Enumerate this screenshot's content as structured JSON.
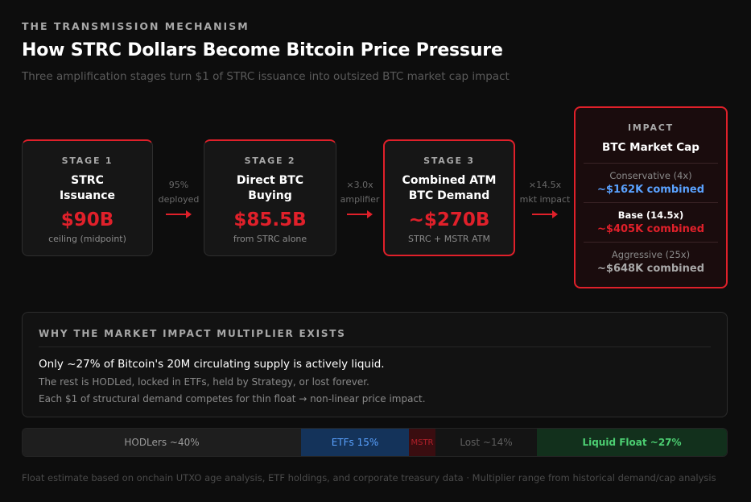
{
  "header": {
    "eyebrow": "THE TRANSMISSION MECHANISM",
    "title": "How STRC Dollars Become Bitcoin Price Pressure",
    "subtitle": "Three amplification stages turn $1 of STRC issuance into outsized BTC market cap impact"
  },
  "stages": [
    {
      "label": "STAGE 1",
      "name_line1": "STRC",
      "name_line2": "Issuance",
      "value": "$90B",
      "note": "ceiling (midpoint)"
    },
    {
      "label": "STAGE 2",
      "name_line1": "Direct BTC",
      "name_line2": "Buying",
      "value": "$85.5B",
      "note": "from STRC alone"
    },
    {
      "label": "STAGE 3",
      "name_line1": "Combined ATM",
      "name_line2": "BTC Demand",
      "value": "~$270B",
      "note": "STRC + MSTR ATM"
    }
  ],
  "connectors": [
    {
      "top": "95%",
      "bottom": "deployed"
    },
    {
      "top": "×3.0x",
      "bottom": "amplifier"
    },
    {
      "top": "×14.5x",
      "bottom": "mkt impact"
    }
  ],
  "impact": {
    "label": "IMPACT",
    "title": "BTC Market Cap",
    "scenarios": [
      {
        "name": "Conservative (4x)",
        "value": "~$162K combined"
      },
      {
        "name": "Base (14.5x)",
        "value": "~$405K combined"
      },
      {
        "name": "Aggressive (25x)",
        "value": "~$648K combined"
      }
    ]
  },
  "why": {
    "label": "WHY THE MARKET IMPACT MULTIPLIER EXISTS",
    "line1": "Only ~27% of Bitcoin's 20M circulating supply is actively liquid.",
    "line2": "The rest is HODLed, locked in ETFs, held by Strategy, or lost forever.",
    "line3": "Each $1 of structural demand competes for thin float → non-linear price impact."
  },
  "supply_bar": {
    "hodlers": "HODLers ~40%",
    "etfs": "ETFs 15%",
    "mstr": "MSTR",
    "lost": "Lost ~14%",
    "float": "Liquid Float ~27%"
  },
  "footnote": "Float estimate based on onchain UTXO age analysis, ETF holdings, and corporate treasury data · Multiplier range from historical demand/cap analysis",
  "colors": {
    "accent_red": "#e0202a",
    "blue": "#5aa2ff",
    "green": "#4ccf72",
    "background": "#0d0d0d"
  }
}
